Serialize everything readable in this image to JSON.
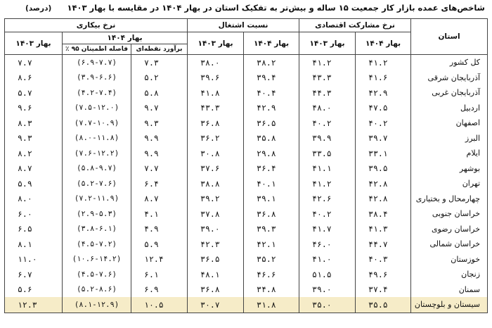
{
  "title": "شاخص‌های عمده بازار کار جمعیت ۱۵ ساله و بیش‌تر به تفکیک استان در بهار ۱۴۰۴ در مقایسه با بهار ۱۴۰۳",
  "unit": "(درصد)",
  "headers": {
    "province": "استان",
    "participation": "نرخ مشارکت اقتصادی",
    "employment": "نسبت اشتغال",
    "unemployment": "نرخ بیکاری",
    "spring_1404": "بهار ۱۴۰۴",
    "spring_1403": "بهار ۱۴۰۳",
    "point_estimate": "برآورد نقطه‌ای",
    "confidence_interval": "فاصله اطمینان ۹۵ ٪"
  },
  "rows": [
    {
      "province": "کل کشور",
      "part_1404": "۴۱.۲",
      "part_1403": "۴۱.۲",
      "emp_1404": "۳۸.۲",
      "emp_1403": "۳۸.۰",
      "unemp_point": "۷.۳",
      "unemp_ci": "(۶.۹-۷.۷)",
      "unemp_1403": "۷.۷"
    },
    {
      "province": "آذربایجان شرقی",
      "part_1404": "۴۱.۶",
      "part_1403": "۴۳.۳",
      "emp_1404": "۳۹.۴",
      "emp_1403": "۳۹.۶",
      "unemp_point": "۵.۲",
      "unemp_ci": "(۳.۹-۶.۶)",
      "unemp_1403": "۸.۶"
    },
    {
      "province": "آذربایجان غربی",
      "part_1404": "۴۲.۹",
      "part_1403": "۴۴.۳",
      "emp_1404": "۴۰.۴",
      "emp_1403": "۴۱.۸",
      "unemp_point": "۵.۸",
      "unemp_ci": "(۴.۲-۷.۴)",
      "unemp_1403": "۵.۷"
    },
    {
      "province": "اردبیل",
      "part_1404": "۴۷.۵",
      "part_1403": "۴۸.۰",
      "emp_1404": "۴۲.۹",
      "emp_1403": "۴۳.۳",
      "unemp_point": "۹.۷",
      "unemp_ci": "(۷.۵-۱۲.۰)",
      "unemp_1403": "۹.۶"
    },
    {
      "province": "اصفهان",
      "part_1404": "۴۰.۲",
      "part_1403": "۴۰.۲",
      "emp_1404": "۳۶.۵",
      "emp_1403": "۳۶.۸",
      "unemp_point": "۹.۳",
      "unemp_ci": "(۷.۷-۱۰.۹)",
      "unemp_1403": "۸.۳"
    },
    {
      "province": "البرز",
      "part_1404": "۳۹.۷",
      "part_1403": "۳۹.۹",
      "emp_1404": "۳۵.۸",
      "emp_1403": "۳۶.۲",
      "unemp_point": "۹.۹",
      "unemp_ci": "(۸.۰-۱۱.۸)",
      "unemp_1403": "۹.۳"
    },
    {
      "province": "ایلام",
      "part_1404": "۳۳.۱",
      "part_1403": "۳۳.۵",
      "emp_1404": "۲۹.۸",
      "emp_1403": "۳۰.۸",
      "unemp_point": "۹.۹",
      "unemp_ci": "(۷.۶-۱۲.۲)",
      "unemp_1403": "۸.۲"
    },
    {
      "province": "بوشهر",
      "part_1404": "۳۹.۵",
      "part_1403": "۴۱.۱",
      "emp_1404": "۳۶.۴",
      "emp_1403": "۳۷.۶",
      "unemp_point": "۷.۷",
      "unemp_ci": "(۵.۸-۹.۷)",
      "unemp_1403": "۸.۷"
    },
    {
      "province": "تهران",
      "part_1404": "۴۲.۸",
      "part_1403": "۴۱.۲",
      "emp_1404": "۴۰.۱",
      "emp_1403": "۳۸.۸",
      "unemp_point": "۶.۴",
      "unemp_ci": "(۵.۲-۷.۶)",
      "unemp_1403": "۵.۹"
    },
    {
      "province": "چهارمحال و بختیاری",
      "part_1404": "۴۲.۸",
      "part_1403": "۴۲.۶",
      "emp_1404": "۳۹.۱",
      "emp_1403": "۳۹.۲",
      "unemp_point": "۸.۷",
      "unemp_ci": "(۷.۲-۱۱.۹)",
      "unemp_1403": "۸.۰"
    },
    {
      "province": "خراسان جنوبی",
      "part_1404": "۳۸.۴",
      "part_1403": "۴۰.۲",
      "emp_1404": "۳۶.۸",
      "emp_1403": "۳۷.۸",
      "unemp_point": "۴.۱",
      "unemp_ci": "(۲.۹-۵.۳)",
      "unemp_1403": "۶.۰"
    },
    {
      "province": "خراسان رضوی",
      "part_1404": "۴۱.۳",
      "part_1403": "۴۱.۷",
      "emp_1404": "۳۹.۳",
      "emp_1403": "۳۹.۰",
      "unemp_point": "۴.۹",
      "unemp_ci": "(۳.۸-۶.۱)",
      "unemp_1403": "۶.۵"
    },
    {
      "province": "خراسان شمالی",
      "part_1404": "۴۴.۷",
      "part_1403": "۴۶.۰",
      "emp_1404": "۴۲.۱",
      "emp_1403": "۴۲.۳",
      "unemp_point": "۵.۹",
      "unemp_ci": "(۴.۵-۷.۲)",
      "unemp_1403": "۸.۱"
    },
    {
      "province": "خوزستان",
      "part_1404": "۴۰.۳",
      "part_1403": "۴۱.۰",
      "emp_1404": "۳۵.۲",
      "emp_1403": "۳۶.۵",
      "unemp_point": "۱۲.۴",
      "unemp_ci": "(۱۰.۶-۱۴.۲)",
      "unemp_1403": "۱۱.۰"
    },
    {
      "province": "زنجان",
      "part_1404": "۴۹.۶",
      "part_1403": "۵۱.۵",
      "emp_1404": "۴۶.۶",
      "emp_1403": "۴۸.۱",
      "unemp_point": "۶.۱",
      "unemp_ci": "(۴.۵-۷.۶)",
      "unemp_1403": "۶.۷"
    },
    {
      "province": "سمنان",
      "part_1404": "۳۷.۴",
      "part_1403": "۳۹.۰",
      "emp_1404": "۳۴.۸",
      "emp_1403": "۳۶.۸",
      "unemp_point": "۶.۹",
      "unemp_ci": "(۵.۲-۸.۶)",
      "unemp_1403": "۵.۶"
    },
    {
      "province": "سیستان و بلوچستان",
      "part_1404": "۳۵.۵",
      "part_1403": "۳۵.۰",
      "emp_1404": "۳۱.۸",
      "emp_1403": "۳۰.۷",
      "unemp_point": "۱۰.۵",
      "unemp_ci": "(۸.۱-۱۲.۹)",
      "unemp_1403": "۱۲.۳"
    }
  ],
  "colors": {
    "highlight_row": "#f6ecc8",
    "grid_line": "#444444"
  }
}
